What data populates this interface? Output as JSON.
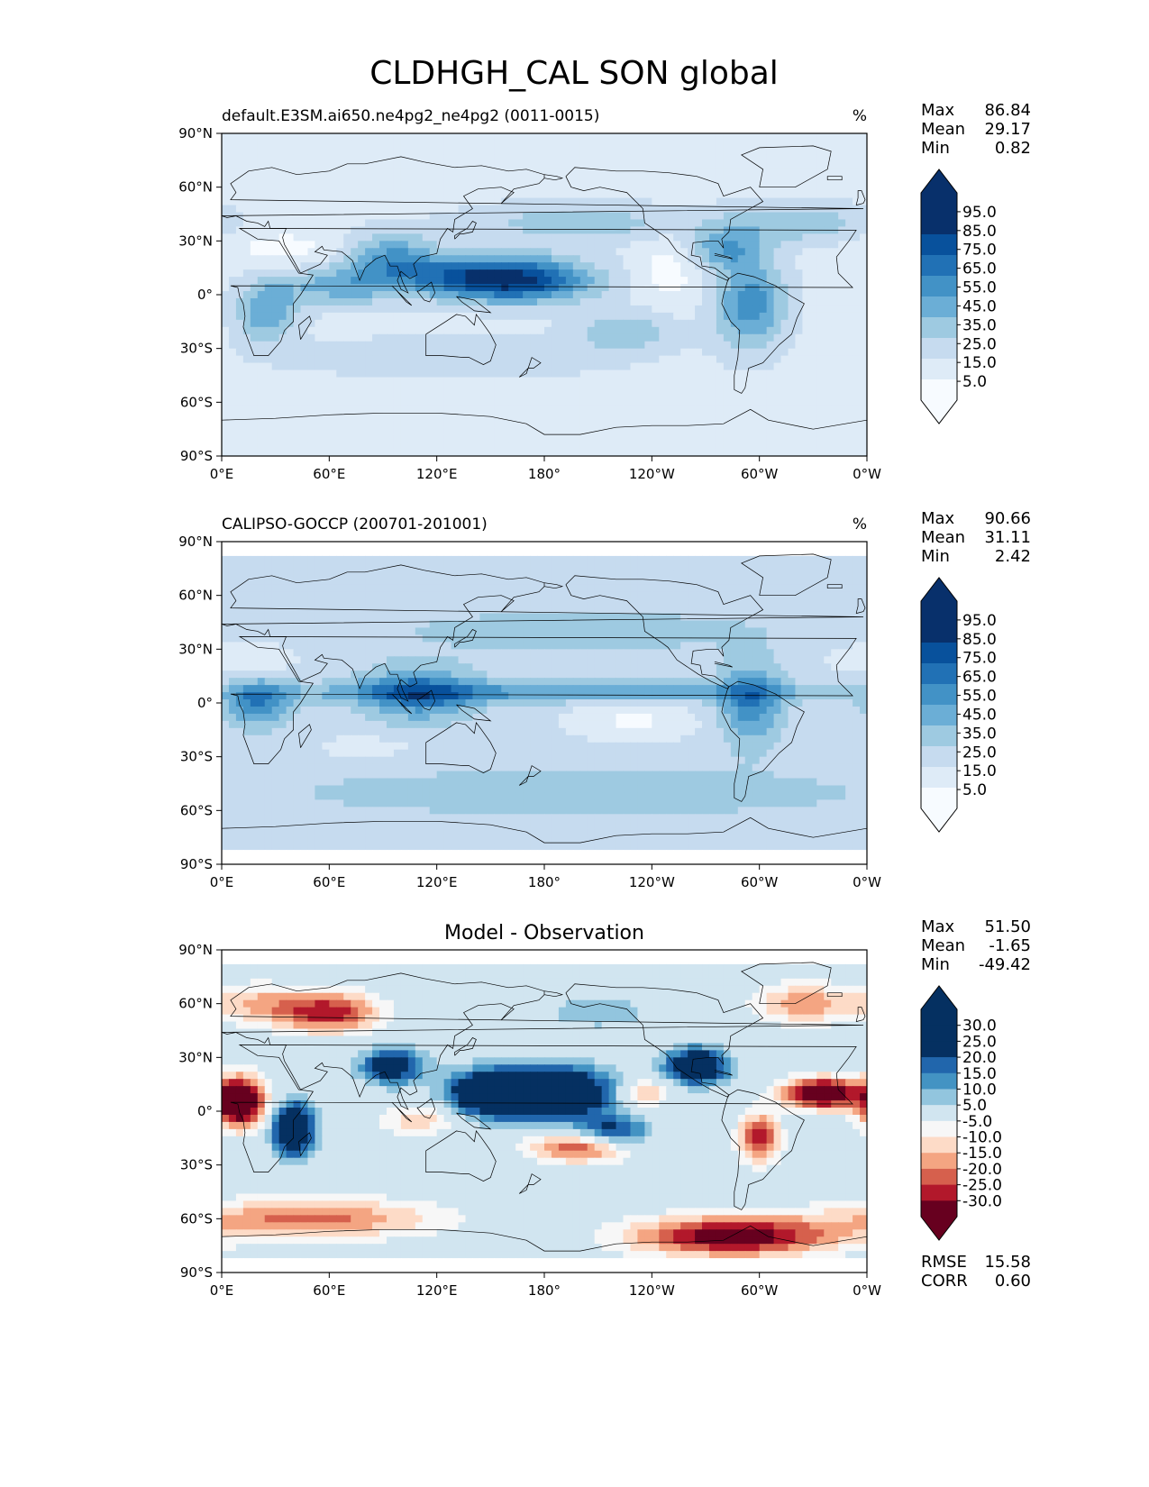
{
  "title": "CLDHGH_CAL SON global",
  "colors": {
    "blues": [
      "#f7fbff",
      "#deebf7",
      "#c6dbef",
      "#9ecae1",
      "#6baed6",
      "#4292c6",
      "#2171b5",
      "#08519c",
      "#08306b"
    ],
    "rdbu": [
      "#67001f",
      "#b2182b",
      "#d6604d",
      "#f4a582",
      "#fddbc7",
      "#f7f7f7",
      "#d1e5f0",
      "#92c5de",
      "#4393c3",
      "#2166ac",
      "#053061"
    ],
    "land": "#000000"
  },
  "chart_data": [
    {
      "type": "heatmap",
      "panel": "test",
      "left_title": "default.E3SM.ai650.ne4pg2_ne4pg2 (0011-0015)",
      "right_title": "%",
      "stats": [
        {
          "label": "Max",
          "value": "86.84"
        },
        {
          "label": "Mean",
          "value": "29.17"
        },
        {
          "label": "Min",
          "value": "0.82"
        }
      ],
      "colorbar": {
        "levels": [
          0,
          10,
          20,
          30,
          40,
          50,
          60,
          70,
          80,
          90,
          100
        ],
        "tick_labels": [
          "95.0",
          "85.0",
          "75.0",
          "65.0",
          "55.0",
          "45.0",
          "35.0",
          "25.0",
          "15.0",
          "5.0"
        ]
      },
      "lat_ticks": [
        "90°N",
        "60°N",
        "30°N",
        "0°",
        "30°S",
        "60°S",
        "90°S"
      ],
      "lon_ticks": [
        "0°E",
        "60°E",
        "120°E",
        "180°",
        "120°W",
        "60°W",
        "0°W"
      ],
      "field": {
        "base": 16,
        "data_lat_range": [
          -90,
          90
        ],
        "features": [
          {
            "lon": 170,
            "lat": 8,
            "slon": 28,
            "slat": 9,
            "amp": 55
          },
          {
            "lon": 135,
            "lat": 10,
            "slon": 25,
            "slat": 8,
            "amp": 38
          },
          {
            "lon": 95,
            "lat": 20,
            "slon": 18,
            "slat": 10,
            "amp": 35
          },
          {
            "lon": 65,
            "lat": 5,
            "slon": 25,
            "slat": 8,
            "amp": 28
          },
          {
            "lon": 25,
            "lat": -10,
            "slon": 12,
            "slat": 12,
            "amp": 32
          },
          {
            "lon": 295,
            "lat": -5,
            "slon": 14,
            "slat": 18,
            "amp": 40
          },
          {
            "lon": 280,
            "lat": 25,
            "slon": 15,
            "slat": 8,
            "amp": 28
          },
          {
            "lon": 200,
            "lat": 40,
            "slon": 45,
            "slat": 8,
            "amp": 20
          },
          {
            "lon": 320,
            "lat": 40,
            "slon": 30,
            "slat": 8,
            "amp": 22
          },
          {
            "lon": 225,
            "lat": -20,
            "slon": 20,
            "slat": 8,
            "amp": 22
          },
          {
            "lon": 130,
            "lat": -35,
            "slon": 60,
            "slat": 8,
            "amp": 14
          },
          {
            "lon": 250,
            "lat": 15,
            "slon": 12,
            "slat": 15,
            "amp": -12
          },
          {
            "lon": 35,
            "lat": 25,
            "slon": 25,
            "slat": 8,
            "amp": -10
          }
        ]
      }
    },
    {
      "type": "heatmap",
      "panel": "reference",
      "left_title": "CALIPSO-GOCCP (200701-201001)",
      "right_title": "%",
      "stats": [
        {
          "label": "Max",
          "value": "90.66"
        },
        {
          "label": "Mean",
          "value": "31.11"
        },
        {
          "label": "Min",
          "value": "2.42"
        }
      ],
      "colorbar": {
        "levels": [
          0,
          10,
          20,
          30,
          40,
          50,
          60,
          70,
          80,
          90,
          100
        ],
        "tick_labels": [
          "95.0",
          "85.0",
          "75.0",
          "65.0",
          "55.0",
          "45.0",
          "35.0",
          "25.0",
          "15.0",
          "5.0"
        ]
      },
      "lat_ticks": [
        "90°N",
        "60°N",
        "30°N",
        "0°",
        "30°S",
        "60°S",
        "90°S"
      ],
      "lon_ticks": [
        "0°E",
        "60°E",
        "120°E",
        "180°",
        "120°W",
        "60°W",
        "0°W"
      ],
      "field": {
        "base": 24,
        "data_lat_range": [
          -82,
          82
        ],
        "features": [
          {
            "lon": 180,
            "lat": 6,
            "slon": 120,
            "slat": 4,
            "amp": 26
          },
          {
            "lon": 110,
            "lat": 5,
            "slon": 22,
            "slat": 10,
            "amp": 38
          },
          {
            "lon": 20,
            "lat": 0,
            "slon": 12,
            "slat": 9,
            "amp": 36
          },
          {
            "lon": 295,
            "lat": 0,
            "slon": 12,
            "slat": 15,
            "amp": 35
          },
          {
            "lon": 200,
            "lat": 40,
            "slon": 90,
            "slat": 10,
            "amp": 10
          },
          {
            "lon": 200,
            "lat": -50,
            "slon": 150,
            "slat": 12,
            "amp": 10
          },
          {
            "lon": 230,
            "lat": -10,
            "slon": 25,
            "slat": 8,
            "amp": -16
          },
          {
            "lon": 10,
            "lat": 25,
            "slon": 25,
            "slat": 7,
            "amp": -12
          },
          {
            "lon": 80,
            "lat": -25,
            "slon": 25,
            "slat": 6,
            "amp": -8
          }
        ]
      }
    },
    {
      "type": "heatmap",
      "panel": "difference",
      "center_title": "Model - Observation",
      "stats": [
        {
          "label": "Max",
          "value": "51.50"
        },
        {
          "label": "Mean",
          "value": "-1.65"
        },
        {
          "label": "Min",
          "value": "-49.42"
        }
      ],
      "extra_stats": [
        {
          "label": "RMSE",
          "value": "15.58"
        },
        {
          "label": "CORR",
          "value": "0.60"
        }
      ],
      "colorbar": {
        "levels": [
          -35,
          -30,
          -25,
          -20,
          -15,
          -10,
          -5,
          5,
          10,
          15,
          20,
          25,
          30,
          35
        ],
        "tick_labels": [
          "30.0",
          "25.0",
          "20.0",
          "15.0",
          "10.0",
          "5.0",
          "-5.0",
          "-10.0",
          "-15.0",
          "-20.0",
          "-25.0",
          "-30.0"
        ]
      },
      "lat_ticks": [
        "90°N",
        "60°N",
        "30°N",
        "0°",
        "30°S",
        "60°S",
        "90°S"
      ],
      "lon_ticks": [
        "0°E",
        "60°E",
        "120°E",
        "180°",
        "120°W",
        "60°W",
        "0°W"
      ],
      "field": {
        "base": 0,
        "data_lat_range": [
          -82,
          82
        ],
        "features": [
          {
            "lon": 180,
            "lat": 10,
            "slon": 25,
            "slat": 10,
            "amp": 50
          },
          {
            "lon": 145,
            "lat": 10,
            "slon": 14,
            "slat": 8,
            "amp": 25
          },
          {
            "lon": 218,
            "lat": -12,
            "slon": 14,
            "slat": 6,
            "amp": 25
          },
          {
            "lon": 40,
            "lat": -10,
            "slon": 8,
            "slat": 10,
            "amp": 42
          },
          {
            "lon": 95,
            "lat": 25,
            "slon": 12,
            "slat": 7,
            "amp": 30
          },
          {
            "lon": 265,
            "lat": 25,
            "slon": 12,
            "slat": 7,
            "amp": 36
          },
          {
            "lon": 210,
            "lat": 55,
            "slon": 20,
            "slat": 6,
            "amp": 10
          },
          {
            "lon": 10,
            "lat": 5,
            "slon": 10,
            "slat": 10,
            "amp": -45
          },
          {
            "lon": 335,
            "lat": 10,
            "slon": 15,
            "slat": 6,
            "amp": -42
          },
          {
            "lon": 60,
            "lat": 55,
            "slon": 20,
            "slat": 8,
            "amp": -28
          },
          {
            "lon": 200,
            "lat": -20,
            "slon": 20,
            "slat": 6,
            "amp": -26
          },
          {
            "lon": 285,
            "lat": -70,
            "slon": 40,
            "slat": 8,
            "amp": -35
          },
          {
            "lon": 50,
            "lat": -60,
            "slon": 50,
            "slat": 8,
            "amp": -22
          },
          {
            "lon": 300,
            "lat": -15,
            "slon": 8,
            "slat": 10,
            "amp": -28
          },
          {
            "lon": 235,
            "lat": 10,
            "slon": 10,
            "slat": 6,
            "amp": -18
          },
          {
            "lon": 325,
            "lat": 60,
            "slon": 20,
            "slat": 8,
            "amp": -18
          },
          {
            "lon": 20,
            "lat": 60,
            "slon": 20,
            "slat": 8,
            "amp": -14
          },
          {
            "lon": 110,
            "lat": -5,
            "slon": 15,
            "slat": 6,
            "amp": -14
          }
        ]
      }
    }
  ]
}
